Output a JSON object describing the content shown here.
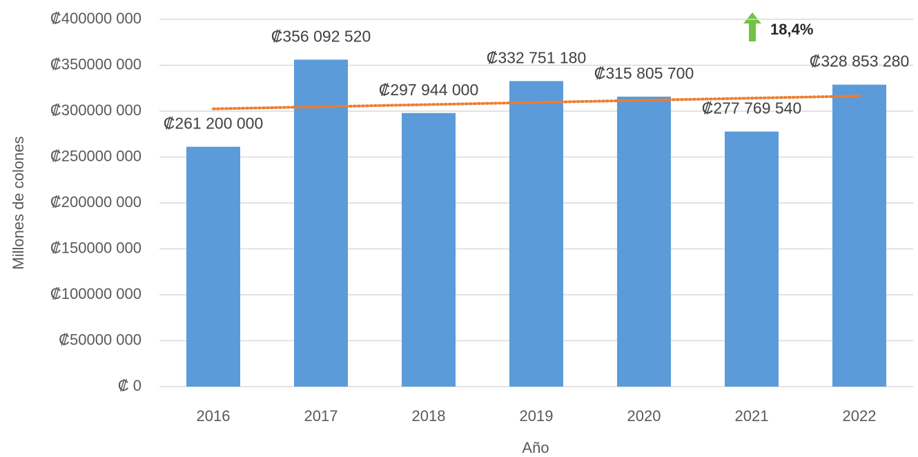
{
  "chart_data": {
    "type": "bar",
    "categories": [
      "2016",
      "2017",
      "2018",
      "2019",
      "2020",
      "2021",
      "2022"
    ],
    "values": [
      261200000,
      356092520,
      297944000,
      332751180,
      315805700,
      277769540,
      328853280
    ],
    "value_labels": [
      "₡261 200 000",
      "₡356 092 520",
      "₡297 944 000",
      "₡332 751 180",
      "₡315 805 700",
      "₡277 769 540",
      "₡328 853 280"
    ],
    "color": "#5b9bd9",
    "ylim": [
      0,
      400000000
    ],
    "yticks": [
      {
        "value": 0,
        "label": "₡ 0"
      },
      {
        "value": 50000000,
        "label": "₡50000 000"
      },
      {
        "value": 100000000,
        "label": "₡100000 000"
      },
      {
        "value": 150000000,
        "label": "₡150000 000"
      },
      {
        "value": 200000000,
        "label": "₡200000 000"
      },
      {
        "value": 250000000,
        "label": "₡250000 000"
      },
      {
        "value": 300000000,
        "label": "₡300000 000"
      },
      {
        "value": 350000000,
        "label": "₡350000 000"
      },
      {
        "value": 400000000,
        "label": "₡400000 000"
      }
    ],
    "grid": true,
    "ylabel": "Millones de colones",
    "xlabel": "Año",
    "trendline": {
      "color": "#ed7d31",
      "values": [
        302500000,
        316500000
      ]
    },
    "annotation": "18,4%"
  }
}
